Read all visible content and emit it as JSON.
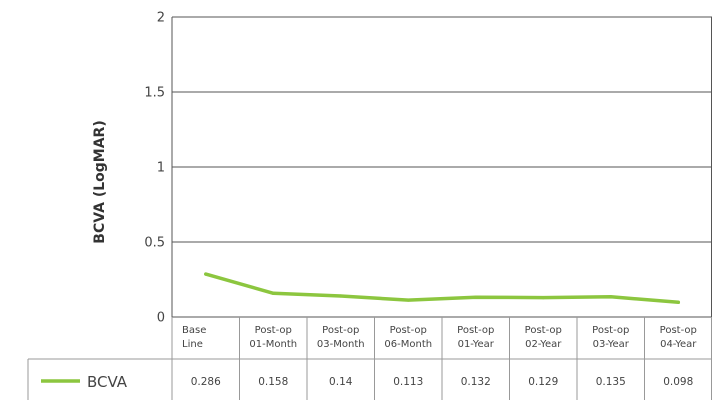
{
  "colors": {
    "series": "#8cc63f",
    "grid": "#555555",
    "table_border": "#999999"
  },
  "chart_data": {
    "type": "line",
    "ylabel": "BCVA (LogMAR)",
    "xlabel": "",
    "ylim": [
      0,
      2
    ],
    "yticks": [
      0,
      0.5,
      1,
      1.5,
      2
    ],
    "ytick_labels": [
      "0",
      "0.5",
      "1",
      "1.5",
      "2"
    ],
    "grid": true,
    "legend": "data-table-left",
    "categories": [
      [
        "Base",
        "Line"
      ],
      [
        "Post-op",
        "01-Month"
      ],
      [
        "Post-op",
        "03-Month"
      ],
      [
        "Post-op",
        "06-Month"
      ],
      [
        "Post-op",
        "01-Year"
      ],
      [
        "Post-op",
        "02-Year"
      ],
      [
        "Post-op",
        "03-Year"
      ],
      [
        "Post-op",
        "04-Year"
      ]
    ],
    "series": [
      {
        "name": "BCVA",
        "values": [
          0.286,
          0.158,
          0.14,
          0.113,
          0.132,
          0.129,
          0.135,
          0.098
        ],
        "value_labels": [
          "0.286",
          "0.158",
          "0.14",
          "0.113",
          "0.132",
          "0.129",
          "0.135",
          "0.098"
        ]
      }
    ]
  }
}
